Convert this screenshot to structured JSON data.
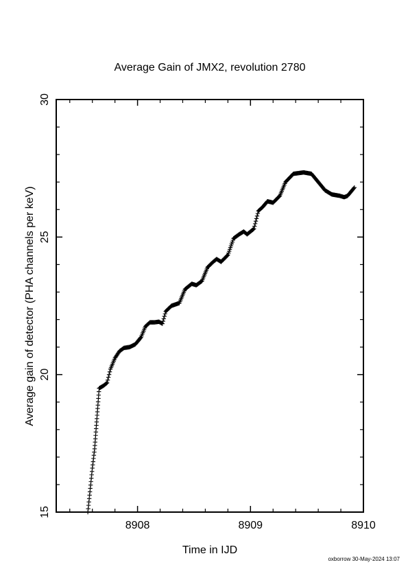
{
  "chart_data": {
    "type": "scatter",
    "title": "Average Gain of JMX2, revolution 2780",
    "xlabel": "Time in IJD",
    "ylabel": "Average gain of detector (PHA channels per keV)",
    "xlim": [
      8907.28,
      8910.0
    ],
    "ylim": [
      15,
      30
    ],
    "xticks": [
      8908,
      8909,
      8910
    ],
    "xtick_labels": [
      "8908",
      "8909",
      "8910"
    ],
    "yticks": [
      15,
      20,
      25,
      30
    ],
    "ytick_labels": [
      "15",
      "20",
      "25",
      "30"
    ],
    "marker": "plus",
    "marker_color": "#000000",
    "grid": false,
    "anchors": [
      [
        8907.56,
        15.0
      ],
      [
        8907.6,
        16.6
      ],
      [
        8907.62,
        17.3
      ],
      [
        8907.66,
        19.5
      ],
      [
        8907.7,
        19.6
      ],
      [
        8907.73,
        19.7
      ],
      [
        8907.76,
        20.2
      ],
      [
        8907.8,
        20.6
      ],
      [
        8907.84,
        20.85
      ],
      [
        8907.88,
        20.97
      ],
      [
        8907.93,
        21.0
      ],
      [
        8907.98,
        21.1
      ],
      [
        8908.03,
        21.35
      ],
      [
        8908.07,
        21.75
      ],
      [
        8908.11,
        21.9
      ],
      [
        8908.15,
        21.9
      ],
      [
        8908.19,
        21.92
      ],
      [
        8908.22,
        21.85
      ],
      [
        8908.25,
        22.3
      ],
      [
        8908.3,
        22.5
      ],
      [
        8908.37,
        22.6
      ],
      [
        8908.42,
        23.1
      ],
      [
        8908.48,
        23.3
      ],
      [
        8908.52,
        23.25
      ],
      [
        8908.57,
        23.4
      ],
      [
        8908.62,
        23.9
      ],
      [
        8908.67,
        24.1
      ],
      [
        8908.7,
        24.2
      ],
      [
        8908.74,
        24.1
      ],
      [
        8908.8,
        24.35
      ],
      [
        8908.85,
        24.95
      ],
      [
        8908.9,
        25.1
      ],
      [
        8908.94,
        25.2
      ],
      [
        8908.97,
        25.1
      ],
      [
        8909.03,
        25.3
      ],
      [
        8909.07,
        25.95
      ],
      [
        8909.11,
        26.1
      ],
      [
        8909.15,
        26.3
      ],
      [
        8909.2,
        26.25
      ],
      [
        8909.26,
        26.5
      ],
      [
        8909.31,
        27.0
      ],
      [
        8909.38,
        27.3
      ],
      [
        8909.47,
        27.35
      ],
      [
        8909.54,
        27.3
      ],
      [
        8909.6,
        27.0
      ],
      [
        8909.66,
        26.7
      ],
      [
        8909.72,
        26.55
      ],
      [
        8909.79,
        26.5
      ],
      [
        8909.83,
        26.45
      ],
      [
        8909.86,
        26.5
      ],
      [
        8909.88,
        26.6
      ],
      [
        8909.92,
        26.8
      ]
    ]
  },
  "footer_text": "oxborrow 30-May-2024 13:07"
}
